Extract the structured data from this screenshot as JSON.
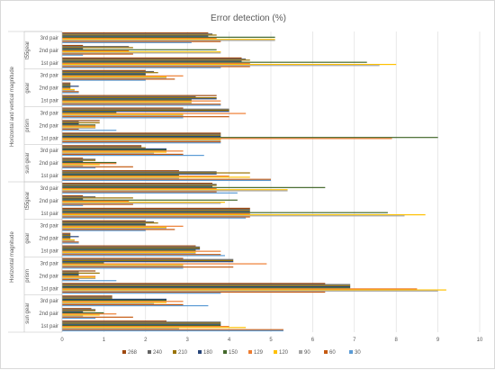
{
  "chart_data": {
    "type": "bar",
    "orientation": "horizontal",
    "title": "Error detection (%)",
    "xlim": [
      0,
      10
    ],
    "x_ticks": [
      0,
      1,
      2,
      3,
      4,
      5,
      6,
      7,
      8,
      9,
      10
    ],
    "grid": true,
    "legend_position": "bottom",
    "groups": [
      "Horizontal and vertical magnitude",
      "Horizontal magnitude"
    ],
    "components": [
      "t55gear",
      "gear",
      "prism",
      "sun gear"
    ],
    "pairs": [
      "3rd pair",
      "2nd pair",
      "1st pair"
    ],
    "categories": [
      "Horizontal and vertical magnitude | t55gear | 3rd pair",
      "Horizontal and vertical magnitude | t55gear | 2nd pair",
      "Horizontal and vertical magnitude | t55gear | 1st pair",
      "Horizontal and vertical magnitude | gear | 3rd pair",
      "Horizontal and vertical magnitude | gear | 2nd pair",
      "Horizontal and vertical magnitude | gear | 1st pair",
      "Horizontal and vertical magnitude | prism | 3rd pair",
      "Horizontal and vertical magnitude | prism | 2nd pair",
      "Horizontal and vertical magnitude | prism | 1st pair",
      "Horizontal and vertical magnitude | sun gear | 3rd pair",
      "Horizontal and vertical magnitude | sun gear | 2nd pair",
      "Horizontal and vertical magnitude | sun gear | 1st pair",
      "Horizontal magnitude | t55gear | 3rd pair",
      "Horizontal magnitude | t55gear | 2nd pair",
      "Horizontal magnitude | t55gear | 1st pair",
      "Horizontal magnitude | gear | 3rd pair",
      "Horizontal magnitude | gear | 2nd pair",
      "Horizontal magnitude | gear | 1st pair",
      "Horizontal magnitude | prism | 3rd pair",
      "Horizontal magnitude | prism | 2nd pair",
      "Horizontal magnitude | prism | 1st pair",
      "Horizontal magnitude | sun gear | 3rd pair",
      "Horizontal magnitude | sun gear | 2nd pair",
      "Horizontal magnitude | sun gear | 1st pair"
    ],
    "series": [
      {
        "name": "268",
        "color": "#9e480e",
        "values": [
          3.5,
          0.5,
          4.3,
          2.0,
          0.2,
          3.7,
          2.9,
          0.9,
          3.8,
          1.9,
          0.5,
          2.8,
          3.6,
          0.5,
          4.5,
          2.0,
          0.2,
          3.2,
          2.9,
          0.8,
          6.3,
          1.2,
          0.7,
          2.5
        ]
      },
      {
        "name": "240",
        "color": "#636363",
        "values": [
          3.6,
          1.6,
          4.4,
          2.2,
          0.2,
          3.2,
          4.0,
          0.4,
          3.8,
          1.9,
          0.8,
          3.7,
          3.7,
          0.8,
          4.5,
          2.2,
          0.2,
          3.3,
          4.1,
          0.4,
          6.9,
          1.2,
          0.8,
          3.8
        ]
      },
      {
        "name": "210",
        "color": "#997300",
        "values": [
          3.7,
          1.7,
          4.5,
          2.3,
          0.2,
          3.7,
          4.0,
          0.9,
          3.8,
          2.0,
          0.8,
          4.5,
          3.7,
          1.7,
          4.5,
          2.3,
          0.2,
          3.3,
          4.1,
          0.9,
          6.9,
          1.2,
          0.8,
          3.8
        ]
      },
      {
        "name": "180",
        "color": "#264478",
        "values": [
          3.5,
          0.5,
          4.3,
          2.0,
          0.4,
          3.7,
          4.0,
          0.4,
          3.8,
          2.5,
          0.5,
          3.7,
          3.6,
          0.5,
          4.5,
          2.0,
          0.4,
          3.3,
          4.1,
          0.4,
          6.9,
          2.5,
          0.5,
          3.8
        ]
      },
      {
        "name": "150",
        "color": "#43682b",
        "values": [
          5.1,
          3.7,
          7.3,
          2.0,
          0.2,
          3.1,
          1.3,
          0.8,
          9.0,
          2.5,
          1.3,
          2.8,
          6.3,
          4.2,
          7.8,
          2.0,
          0.2,
          3.2,
          1.0,
          0.4,
          6.9,
          2.5,
          1.0,
          3.8
        ]
      },
      {
        "name": "129",
        "color": "#ed7d31",
        "values": [
          3.7,
          1.6,
          4.5,
          2.9,
          0.2,
          3.8,
          4.4,
          0.8,
          7.9,
          2.9,
          1.3,
          4.0,
          3.7,
          1.6,
          4.5,
          2.9,
          0.2,
          3.8,
          4.9,
          0.8,
          8.5,
          2.9,
          1.3,
          4.0
        ]
      },
      {
        "name": "120",
        "color": "#ffc000",
        "values": [
          5.1,
          3.8,
          8.0,
          2.5,
          0.3,
          3.1,
          2.9,
          0.8,
          3.8,
          2.5,
          0.9,
          4.5,
          5.4,
          3.9,
          8.7,
          2.5,
          0.3,
          3.2,
          2.9,
          0.8,
          9.2,
          2.5,
          0.9,
          4.4
        ]
      },
      {
        "name": "90",
        "color": "#a5a5a5",
        "values": [
          5.1,
          3.8,
          7.6,
          2.5,
          0.3,
          3.1,
          2.9,
          0.8,
          3.8,
          2.2,
          0.5,
          2.8,
          5.4,
          3.8,
          8.2,
          2.5,
          0.3,
          3.2,
          2.9,
          0.8,
          9.0,
          2.2,
          0.5,
          2.8
        ]
      },
      {
        "name": "60",
        "color": "#c55a11",
        "values": [
          3.8,
          1.7,
          4.5,
          2.7,
          0.4,
          3.8,
          4.0,
          0.4,
          3.8,
          2.9,
          1.7,
          5.0,
          3.7,
          1.7,
          4.5,
          2.7,
          0.4,
          3.8,
          4.1,
          0.4,
          6.3,
          2.9,
          1.7,
          5.3
        ]
      },
      {
        "name": "30",
        "color": "#5b9bd5",
        "values": [
          3.1,
          0.5,
          3.8,
          2.0,
          0.4,
          3.8,
          2.9,
          1.3,
          3.8,
          3.4,
          0.8,
          5.0,
          4.2,
          0.5,
          4.4,
          2.0,
          0.4,
          3.9,
          2.9,
          1.3,
          3.8,
          3.5,
          0.8,
          5.3
        ]
      }
    ]
  }
}
